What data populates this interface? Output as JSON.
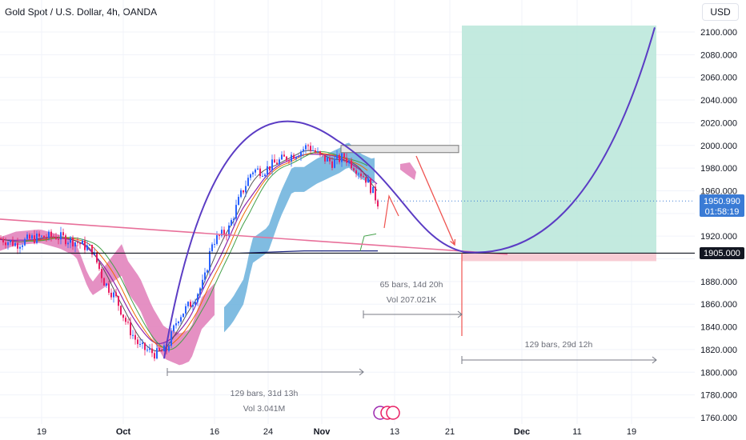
{
  "header": {
    "title": "Gold Spot / U.S. Dollar, 4h, OANDA",
    "currency": "USD"
  },
  "chart_data": {
    "type": "candlestick",
    "title": "Gold Spot / U.S. Dollar, 4h, OANDA",
    "y_ticks": [
      2100,
      2080,
      2060,
      2040,
      2020,
      2000,
      1980,
      1960,
      1940,
      1920,
      1900,
      1880,
      1860,
      1840,
      1820,
      1800,
      1780,
      1760
    ],
    "y_tick_labels": [
      "2100.000",
      "2080.000",
      "2060.000",
      "2040.000",
      "2020.000",
      "2000.000",
      "1980.000",
      "1960.000",
      "",
      "1920.000",
      "",
      "1880.000",
      "1860.000",
      "1840.000",
      "1820.000",
      "1800.000",
      "1780.000",
      "1760.000"
    ],
    "ylim": [
      1758,
      2110
    ],
    "x_tick_labels": [
      "19",
      "Oct",
      "16",
      "24",
      "Nov",
      "13",
      "21",
      "Dec",
      "11",
      "19"
    ],
    "x_tick_bold": [
      false,
      true,
      false,
      false,
      true,
      false,
      false,
      true,
      false,
      false
    ],
    "current_price": "1950.990",
    "countdown": "01:58:19",
    "level_price": "1905.000",
    "projection_target": 2105,
    "projection_low": 1908,
    "annotations": {
      "range_left": {
        "bars": "129 bars, 31d 13h",
        "vol": "Vol 3.041M"
      },
      "range_mid": {
        "bars": "65 bars, 14d 20h",
        "vol": "Vol 207.021K"
      },
      "range_right": {
        "bars": "129 bars, 29d 12h"
      }
    },
    "colors": {
      "bull": "#2962ff",
      "bear": "#e91e63",
      "cloud_bull": "#6ab0dc",
      "cloud_bear": "#e07cb8",
      "projection": "#5b3cc4",
      "trendline": "#e8709a",
      "target_zone": "#b8e6d9",
      "stop_zone": "#f7c6cf",
      "level_line": "#131722"
    }
  }
}
